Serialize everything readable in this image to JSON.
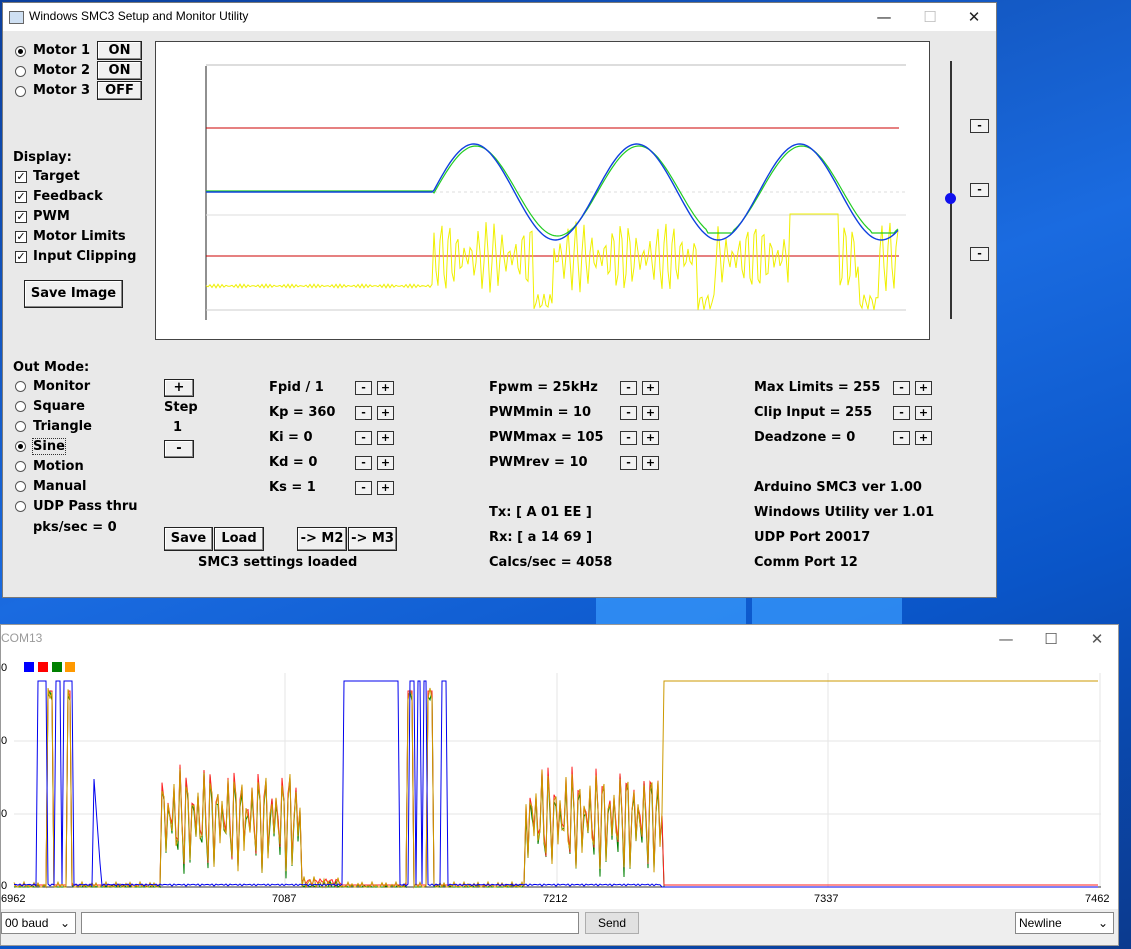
{
  "window": {
    "title": "Windows SMC3 Setup and Monitor Utility",
    "minimize_glyph": "—",
    "maximize_glyph": "☐",
    "close_glyph": "✕"
  },
  "motors": [
    {
      "label": "Motor 1",
      "state": "ON",
      "selected": true
    },
    {
      "label": "Motor 2",
      "state": "ON",
      "selected": false
    },
    {
      "label": "Motor 3",
      "state": "OFF",
      "selected": false
    }
  ],
  "display": {
    "heading": "Display:",
    "options": [
      {
        "label": "Target",
        "checked": true
      },
      {
        "label": "Feedback",
        "checked": true
      },
      {
        "label": "PWM",
        "checked": true
      },
      {
        "label": "Motor Limits",
        "checked": true
      },
      {
        "label": "Input Clipping",
        "checked": true
      }
    ],
    "save_image": "Save Image"
  },
  "out_mode": {
    "heading": "Out Mode:",
    "options": [
      {
        "label": "Monitor",
        "selected": false
      },
      {
        "label": "Square",
        "selected": false
      },
      {
        "label": "Triangle",
        "selected": false
      },
      {
        "label": "Sine",
        "selected": true
      },
      {
        "label": "Motion",
        "selected": false
      },
      {
        "label": "Manual",
        "selected": false
      },
      {
        "label": "UDP Pass thru",
        "selected": false
      }
    ],
    "pks": "pks/sec = 0"
  },
  "step": {
    "plus": "+",
    "label": "Step",
    "value": "1",
    "minus": "-"
  },
  "pid": [
    "Fpid / 1",
    "Kp = 360",
    "Ki = 0",
    "Kd = 0",
    "Ks = 1"
  ],
  "pwm": [
    "Fpwm = 25kHz",
    "PWMmin = 10",
    "PWMmax = 105",
    "PWMrev = 10"
  ],
  "limits": [
    "Max Limits = 255",
    "Clip Input = 255",
    "Deadzone = 0"
  ],
  "comm": {
    "tx": "Tx: [ A 01 EE ]",
    "rx": "Rx: [ a 14 69 ]",
    "calcs": "Calcs/sec = 4058"
  },
  "info": [
    "Arduino SMC3 ver 1.00",
    "Windows Utility ver 1.01",
    "UDP Port 20017",
    "Comm Port 12"
  ],
  "buttons": {
    "save": "Save",
    "load": "Load",
    "to_m2": "-> M2",
    "to_m3": "-> M3",
    "minus": "-",
    "plus": "+"
  },
  "status": "SMC3 settings loaded",
  "colors": {
    "target": "#1040e0",
    "feedback": "#22cc22",
    "pwm": "#f0f000",
    "limits": "#cc0000",
    "slider": "#1010ee"
  },
  "plotter": {
    "title": "COM13",
    "legend_colors": [
      "#0000ff",
      "#ff0000",
      "#008000",
      "#ff9900"
    ],
    "x_ticks": [
      "6962",
      "7087",
      "7212",
      "7337",
      "7462"
    ],
    "y_ticks": [
      "0",
      "0",
      "0",
      "0"
    ],
    "baud": "00 baud",
    "send": "Send",
    "line_ending": "Newline",
    "input_value": ""
  }
}
